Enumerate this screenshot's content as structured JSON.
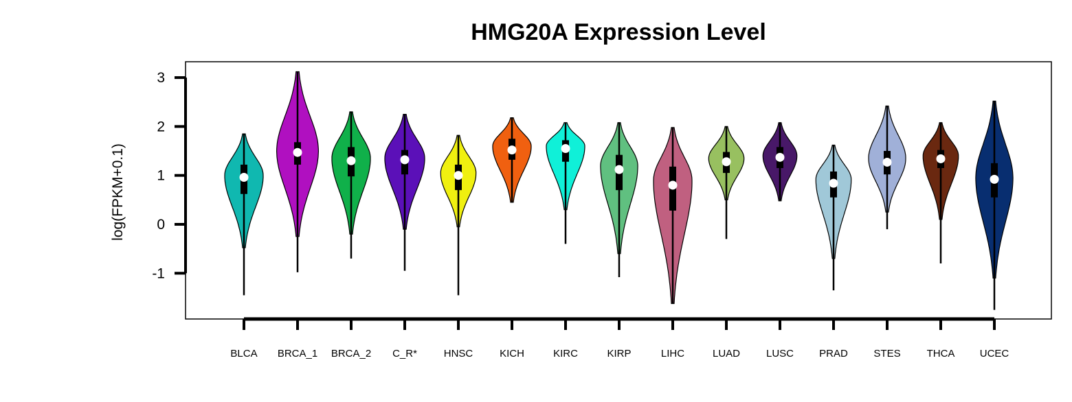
{
  "chart_data": {
    "type": "violin",
    "title": "HMG20A Expression Level",
    "ylabel": "log(FPKM+0.1)",
    "xlabel": "",
    "ylim": [
      -1.9,
      3.3
    ],
    "yticks": [
      -1,
      0,
      1,
      2,
      3
    ],
    "ytick_labels": [
      "-1",
      "0",
      "1",
      "2",
      "3"
    ],
    "grid": false,
    "legend": "none",
    "categories": [
      "BLCA",
      "BRCA_1",
      "BRCA_2",
      "C_R*",
      "HNSC",
      "KICH",
      "KIRC",
      "KIRP",
      "LIHC",
      "LUAD",
      "LUSC",
      "PRAD",
      "STES",
      "THCA",
      "UCEC"
    ],
    "series": [
      {
        "category": "BLCA",
        "color": "#10B8B0",
        "min": -1.45,
        "max": 1.85,
        "q1": 0.62,
        "median": 0.96,
        "q3": 1.22,
        "peak": 1.0,
        "wmin": -0.48,
        "wmax": 1.85,
        "width": 0.85
      },
      {
        "category": "BRCA_1",
        "color": "#B010C0",
        "min": -0.98,
        "max": 3.12,
        "q1": 1.22,
        "median": 1.47,
        "q3": 1.68,
        "peak": 1.5,
        "wmin": -0.25,
        "wmax": 3.12,
        "width": 0.92
      },
      {
        "category": "BRCA_2",
        "color": "#10B04A",
        "min": -0.7,
        "max": 2.3,
        "q1": 0.98,
        "median": 1.3,
        "q3": 1.58,
        "peak": 1.35,
        "wmin": -0.2,
        "wmax": 2.3,
        "width": 0.85
      },
      {
        "category": "C_R*",
        "color": "#5B10B8",
        "min": -0.95,
        "max": 2.25,
        "q1": 1.02,
        "median": 1.32,
        "q3": 1.52,
        "peak": 1.35,
        "wmin": -0.1,
        "wmax": 2.25,
        "width": 0.88
      },
      {
        "category": "HNSC",
        "color": "#F0F010",
        "min": -1.45,
        "max": 1.82,
        "q1": 0.7,
        "median": 1.0,
        "q3": 1.22,
        "peak": 1.05,
        "wmin": -0.05,
        "wmax": 1.82,
        "width": 0.78
      },
      {
        "category": "KICH",
        "color": "#F06010",
        "min": 0.45,
        "max": 2.18,
        "q1": 1.32,
        "median": 1.52,
        "q3": 1.75,
        "peak": 1.6,
        "wmin": 0.45,
        "wmax": 2.18,
        "width": 0.85
      },
      {
        "category": "KIRC",
        "color": "#10F0D8",
        "min": -0.4,
        "max": 2.08,
        "q1": 1.28,
        "median": 1.55,
        "q3": 1.72,
        "peak": 1.6,
        "wmin": 0.3,
        "wmax": 2.08,
        "width": 0.85
      },
      {
        "category": "KIRP",
        "color": "#60C080",
        "min": -1.08,
        "max": 2.08,
        "q1": 0.7,
        "median": 1.12,
        "q3": 1.42,
        "peak": 1.2,
        "wmin": -0.6,
        "wmax": 2.08,
        "width": 0.82
      },
      {
        "category": "LIHC",
        "color": "#C06080",
        "min": -1.62,
        "max": 1.98,
        "q1": 0.28,
        "median": 0.8,
        "q3": 1.18,
        "peak": 0.9,
        "wmin": -1.62,
        "wmax": 1.98,
        "width": 0.85
      },
      {
        "category": "LUAD",
        "color": "#98C060",
        "min": -0.3,
        "max": 2.0,
        "q1": 1.05,
        "median": 1.28,
        "q3": 1.48,
        "peak": 1.35,
        "wmin": 0.5,
        "wmax": 2.0,
        "width": 0.78
      },
      {
        "category": "LUSC",
        "color": "#481868",
        "min": 0.48,
        "max": 2.08,
        "q1": 1.15,
        "median": 1.37,
        "q3": 1.58,
        "peak": 1.4,
        "wmin": 0.48,
        "wmax": 2.08,
        "width": 0.75
      },
      {
        "category": "PRAD",
        "color": "#A0C8D8",
        "min": -1.35,
        "max": 1.62,
        "q1": 0.55,
        "median": 0.84,
        "q3": 1.08,
        "peak": 0.92,
        "wmin": -0.7,
        "wmax": 1.62,
        "width": 0.78
      },
      {
        "category": "STES",
        "color": "#A0B0D8",
        "min": -0.1,
        "max": 2.42,
        "q1": 1.02,
        "median": 1.27,
        "q3": 1.5,
        "peak": 1.35,
        "wmin": 0.25,
        "wmax": 2.42,
        "width": 0.82
      },
      {
        "category": "THCA",
        "color": "#6A2810",
        "min": -0.8,
        "max": 2.08,
        "q1": 1.15,
        "median": 1.34,
        "q3": 1.52,
        "peak": 1.4,
        "wmin": 0.1,
        "wmax": 2.08,
        "width": 0.78
      },
      {
        "category": "UCEC",
        "color": "#082E70",
        "min": -1.75,
        "max": 2.52,
        "q1": 0.55,
        "median": 0.92,
        "q3": 1.25,
        "peak": 0.95,
        "wmin": -1.1,
        "wmax": 2.52,
        "width": 0.82
      }
    ]
  }
}
